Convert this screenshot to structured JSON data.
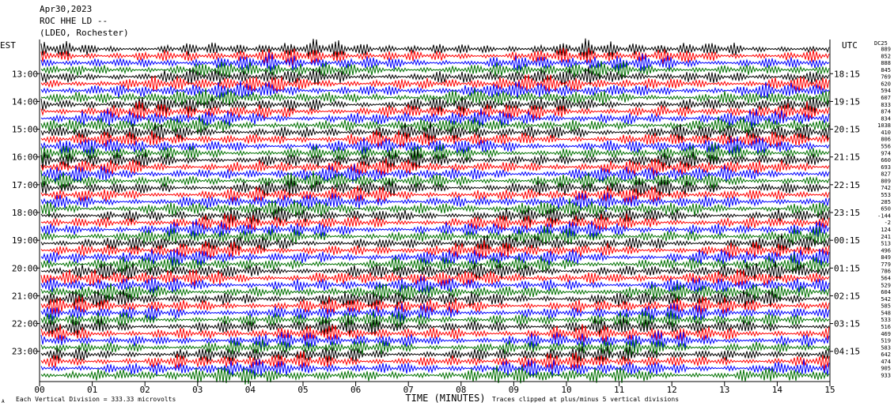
{
  "header": {
    "date": "Apr30,2023",
    "station": "ROC HHE LD --",
    "network": "(LDEO, Rochester)"
  },
  "labels": {
    "left_tz": "EST",
    "right_tz": "UTC",
    "dc_header": "DC25",
    "x_axis_title": "TIME (MINUTES)",
    "footer_left": "Each Vertical Division =  333.33 microvolts",
    "footer_right": "Traces clipped at plus/minus 5 vertical divisions",
    "corner_mark": "A"
  },
  "colors": {
    "cycle": [
      "#000000",
      "#ff0000",
      "#0000ff",
      "#007000"
    ],
    "axis": "#000000",
    "background": "#ffffff"
  },
  "chart_data": {
    "type": "line",
    "title": "",
    "xlabel": "TIME (MINUTES)",
    "xlim": [
      0,
      15
    ],
    "x_ticks": [
      "00",
      "01",
      "02",
      "03",
      "04",
      "05",
      "06",
      "07",
      "08",
      "09",
      "10",
      "11",
      "12",
      "13",
      "14",
      "15"
    ],
    "left_hour_labels": [
      "13:00",
      "14:00",
      "15:00",
      "16:00",
      "17:00",
      "18:00",
      "19:00",
      "20:00",
      "21:00",
      "22:00",
      "23:00"
    ],
    "right_hour_labels": [
      "18:15",
      "19:15",
      "20:15",
      "21:15",
      "22:15",
      "23:15",
      "00:15",
      "01:15",
      "02:15",
      "03:15",
      "04:15"
    ],
    "traces_per_hour": 4,
    "trace_count": 48,
    "dc_offsets": [
      "889",
      "852",
      "888",
      "845",
      "769",
      "620",
      "594",
      "607",
      "833",
      "874",
      "834",
      "1038",
      "410",
      "806",
      "556",
      "974",
      "660",
      "693",
      "827",
      "809",
      "742",
      "553",
      "285",
      "650",
      "-144",
      "-2",
      "124",
      "241",
      "513",
      "496",
      "849",
      "779",
      "786",
      "564",
      "529",
      "604",
      "542",
      "585",
      "548",
      "533",
      "516",
      "469",
      "519",
      "583",
      "642",
      "474",
      "905",
      "933"
    ],
    "clip_divisions": 5,
    "vertical_division_microvolts": 333.33
  }
}
